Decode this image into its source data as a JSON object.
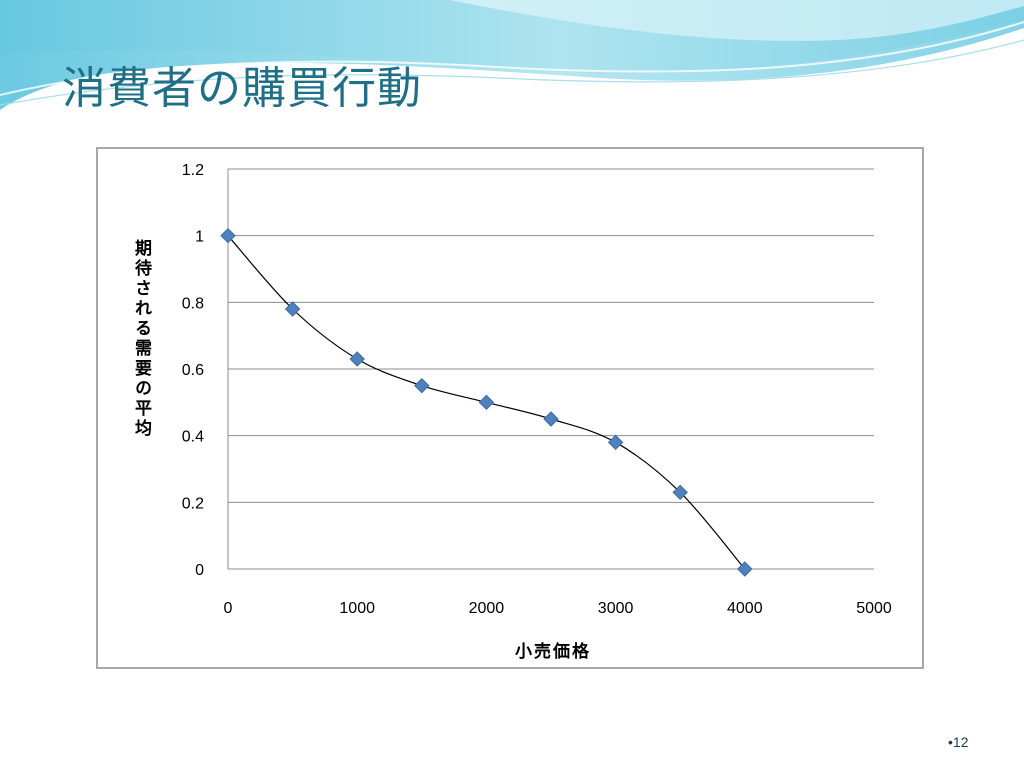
{
  "slide": {
    "title": "消費者の購買行動",
    "page_number": "•12"
  },
  "colors": {
    "title": "#1f6f86",
    "marker": "#4f81bd",
    "curve": "#000000",
    "wave_dark": "#6cc7de",
    "wave_light": "#c9ecf4"
  },
  "chart_data": {
    "type": "scatter",
    "xlabel": "小売価格",
    "ylabel": "期待される需要の平均",
    "xlim": [
      0,
      5000
    ],
    "ylim": [
      0,
      1.2
    ],
    "x_ticks": [
      0,
      1000,
      2000,
      3000,
      4000,
      5000
    ],
    "y_ticks": [
      0,
      0.2,
      0.4,
      0.6,
      0.8,
      1,
      1.2
    ],
    "x_tick_labels": [
      "0",
      "1000",
      "2000",
      "3000",
      "4000",
      "5000"
    ],
    "y_tick_labels": [
      "0",
      "0.2",
      "0.4",
      "0.6",
      "0.8",
      "1",
      "1.2"
    ],
    "grid": "horizontal",
    "smooth_line": true,
    "marker": "diamond",
    "series": [
      {
        "x": [
          0,
          500,
          1000,
          1500,
          2000,
          2500,
          3000,
          3500,
          4000
        ],
        "y": [
          1.0,
          0.78,
          0.63,
          0.55,
          0.5,
          0.45,
          0.38,
          0.23,
          0.0
        ]
      }
    ]
  }
}
